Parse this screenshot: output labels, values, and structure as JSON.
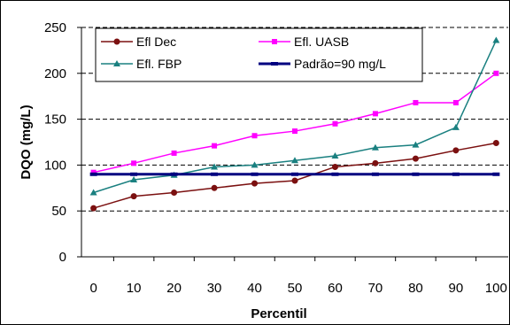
{
  "chart_data": {
    "type": "line",
    "xlabel": "Percentil",
    "ylabel": "DQO (mg/L)",
    "x": [
      0,
      10,
      20,
      30,
      40,
      50,
      60,
      70,
      80,
      90,
      100
    ],
    "xlim": [
      -3,
      103
    ],
    "ylim": [
      0,
      250
    ],
    "y_ticks": [
      0,
      50,
      100,
      150,
      200,
      250
    ],
    "x_ticks": [
      0,
      10,
      20,
      30,
      40,
      50,
      60,
      70,
      80,
      90,
      100
    ],
    "grid": "horizontal dashed",
    "legend_position": "top-left",
    "series": [
      {
        "name": "Efl Dec",
        "color": "#7b1010",
        "marker": "circle",
        "values": [
          53,
          66,
          70,
          75,
          80,
          83,
          98,
          102,
          107,
          116,
          124
        ]
      },
      {
        "name": "Efl. UASB",
        "color": "#ff00ff",
        "marker": "square",
        "values": [
          92,
          102,
          113,
          121,
          132,
          137,
          145,
          156,
          168,
          168,
          200
        ]
      },
      {
        "name": "Efl. FBP",
        "color": "#1a8080",
        "marker": "triangle",
        "values": [
          70,
          84,
          89,
          98,
          100,
          105,
          110,
          119,
          122,
          141,
          236
        ]
      },
      {
        "name": "Padrão=90 mg/L",
        "color": "#000080",
        "marker": "dash",
        "values": [
          90,
          90,
          90,
          90,
          90,
          90,
          90,
          90,
          90,
          90,
          90
        ]
      }
    ]
  }
}
